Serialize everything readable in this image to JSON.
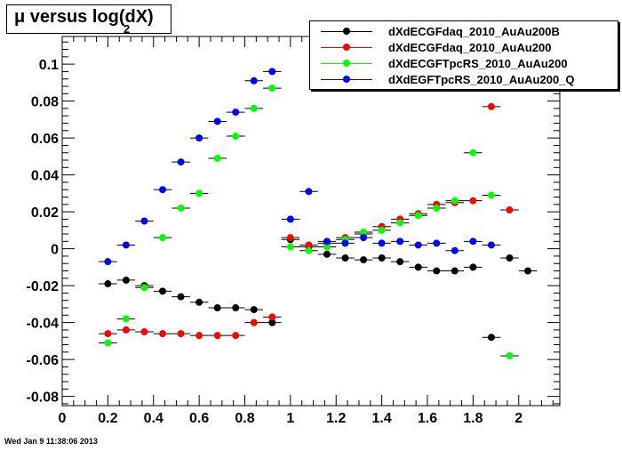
{
  "title": {
    "main": "μ versus log(dX)",
    "subscript": "2"
  },
  "timestamp": "Wed Jan  9 11:38:06 2013",
  "chart_data": {
    "type": "scatter",
    "title": "μ versus log2(dX)",
    "xlabel": "",
    "ylabel": "",
    "xlim": [
      0,
      2.18
    ],
    "ylim": [
      -0.085,
      0.115
    ],
    "xticks": [
      "0",
      "0.2",
      "0.4",
      "0.6",
      "0.8",
      "1",
      "1.2",
      "1.4",
      "1.6",
      "1.8",
      "2"
    ],
    "yticks": [
      "-0.08",
      "-0.06",
      "-0.04",
      "-0.02",
      "0",
      "0.02",
      "0.04",
      "0.06",
      "0.08",
      "0.1"
    ],
    "grid": false,
    "legend_position": "top-right",
    "series": [
      {
        "name": "dXdECGFdaq_2010_AuAu200B",
        "color": "#000000",
        "x": [
          0.2,
          0.28,
          0.36,
          0.44,
          0.52,
          0.6,
          0.68,
          0.76,
          0.84,
          0.92,
          1.0,
          1.08,
          1.16,
          1.24,
          1.32,
          1.4,
          1.48,
          1.56,
          1.64,
          1.72,
          1.8,
          1.88,
          1.96,
          2.04
        ],
        "y": [
          -0.019,
          -0.017,
          -0.02,
          -0.023,
          -0.026,
          -0.029,
          -0.032,
          -0.032,
          -0.033,
          -0.04,
          0.005,
          0.001,
          -0.003,
          -0.005,
          -0.006,
          -0.005,
          -0.007,
          -0.01,
          -0.012,
          -0.012,
          -0.01,
          -0.048,
          -0.005,
          -0.012
        ]
      },
      {
        "name": "dXdECGFdaq_2010_AuAu200",
        "color": "#ff0000",
        "x": [
          0.2,
          0.28,
          0.36,
          0.44,
          0.52,
          0.6,
          0.68,
          0.76,
          0.84,
          0.92,
          1.0,
          1.08,
          1.16,
          1.24,
          1.32,
          1.4,
          1.48,
          1.56,
          1.64,
          1.72,
          1.8,
          1.88,
          1.96
        ],
        "y": [
          -0.046,
          -0.044,
          -0.045,
          -0.046,
          -0.046,
          -0.047,
          -0.047,
          -0.047,
          -0.04,
          -0.037,
          0.006,
          0.002,
          0.003,
          0.006,
          0.008,
          0.012,
          0.016,
          0.019,
          0.024,
          0.025,
          0.026,
          0.077,
          0.021
        ]
      },
      {
        "name": "dXdECGFTpcRS_2010_AuAu200",
        "color": "#00ff00",
        "x": [
          0.2,
          0.28,
          0.36,
          0.44,
          0.52,
          0.6,
          0.68,
          0.76,
          0.84,
          0.92,
          1.0,
          1.08,
          1.16,
          1.24,
          1.32,
          1.4,
          1.48,
          1.56,
          1.64,
          1.72,
          1.8,
          1.88,
          1.96
        ],
        "y": [
          -0.051,
          -0.038,
          -0.021,
          0.006,
          0.022,
          0.03,
          0.049,
          0.061,
          0.076,
          0.087,
          0.001,
          -0.001,
          0.001,
          0.005,
          0.009,
          0.01,
          0.014,
          0.018,
          0.022,
          0.026,
          0.052,
          0.029,
          -0.058
        ]
      },
      {
        "name": "dXdEGFTpcRS_2010_AuAu200_Q",
        "color": "#0000ff",
        "x": [
          0.2,
          0.28,
          0.36,
          0.44,
          0.52,
          0.6,
          0.68,
          0.76,
          0.84,
          0.92,
          1.0,
          1.08,
          1.16,
          1.24,
          1.32,
          1.4,
          1.48,
          1.56,
          1.64,
          1.72,
          1.8,
          1.88
        ],
        "y": [
          -0.007,
          0.002,
          0.015,
          0.032,
          0.047,
          0.06,
          0.069,
          0.074,
          0.091,
          0.096,
          0.016,
          0.031,
          0.004,
          0.003,
          0.006,
          0.003,
          0.004,
          0.002,
          0.003,
          -0.001,
          0.004,
          0.002
        ]
      }
    ]
  }
}
